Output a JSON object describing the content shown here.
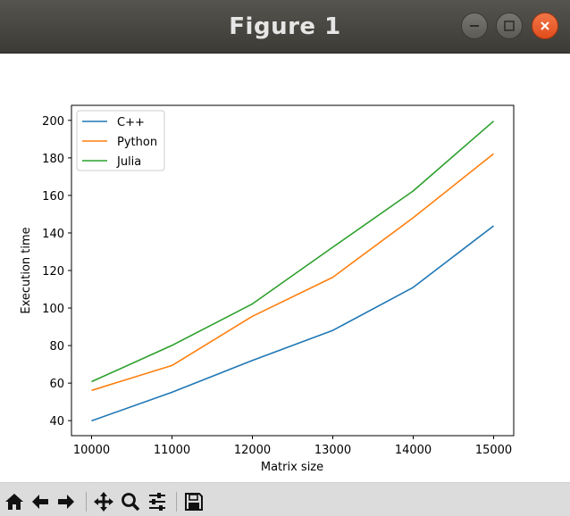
{
  "window": {
    "title": "Figure 1"
  },
  "toolbar": {
    "buttons": [
      "home-icon",
      "back-icon",
      "forward-icon",
      "pan-icon",
      "zoom-icon",
      "configure-subplots-icon",
      "save-icon"
    ]
  },
  "chart_data": {
    "type": "line",
    "title": "",
    "xlabel": "Matrix size",
    "ylabel": "Execution time",
    "x": [
      10000,
      11000,
      12000,
      13000,
      14000,
      15000
    ],
    "xlim": [
      9750,
      15250
    ],
    "ylim": [
      32,
      208
    ],
    "xticks": [
      10000,
      11000,
      12000,
      13000,
      14000,
      15000
    ],
    "yticks": [
      40,
      60,
      80,
      100,
      120,
      140,
      160,
      180,
      200
    ],
    "grid": false,
    "legend_position": "upper-left",
    "series": [
      {
        "name": "C++",
        "color": "#1f77b4",
        "values": [
          39.9,
          55.1,
          72.1,
          88.1,
          111,
          143.8
        ]
      },
      {
        "name": "Python",
        "color": "#ff7f0e",
        "values": [
          56.1,
          69.4,
          95.6,
          116.4,
          148.1,
          182.2
        ]
      },
      {
        "name": "Julia",
        "color": "#2ca02c",
        "values": [
          60.8,
          80.1,
          102.2,
          132.4,
          162.4,
          199.6
        ]
      }
    ]
  }
}
